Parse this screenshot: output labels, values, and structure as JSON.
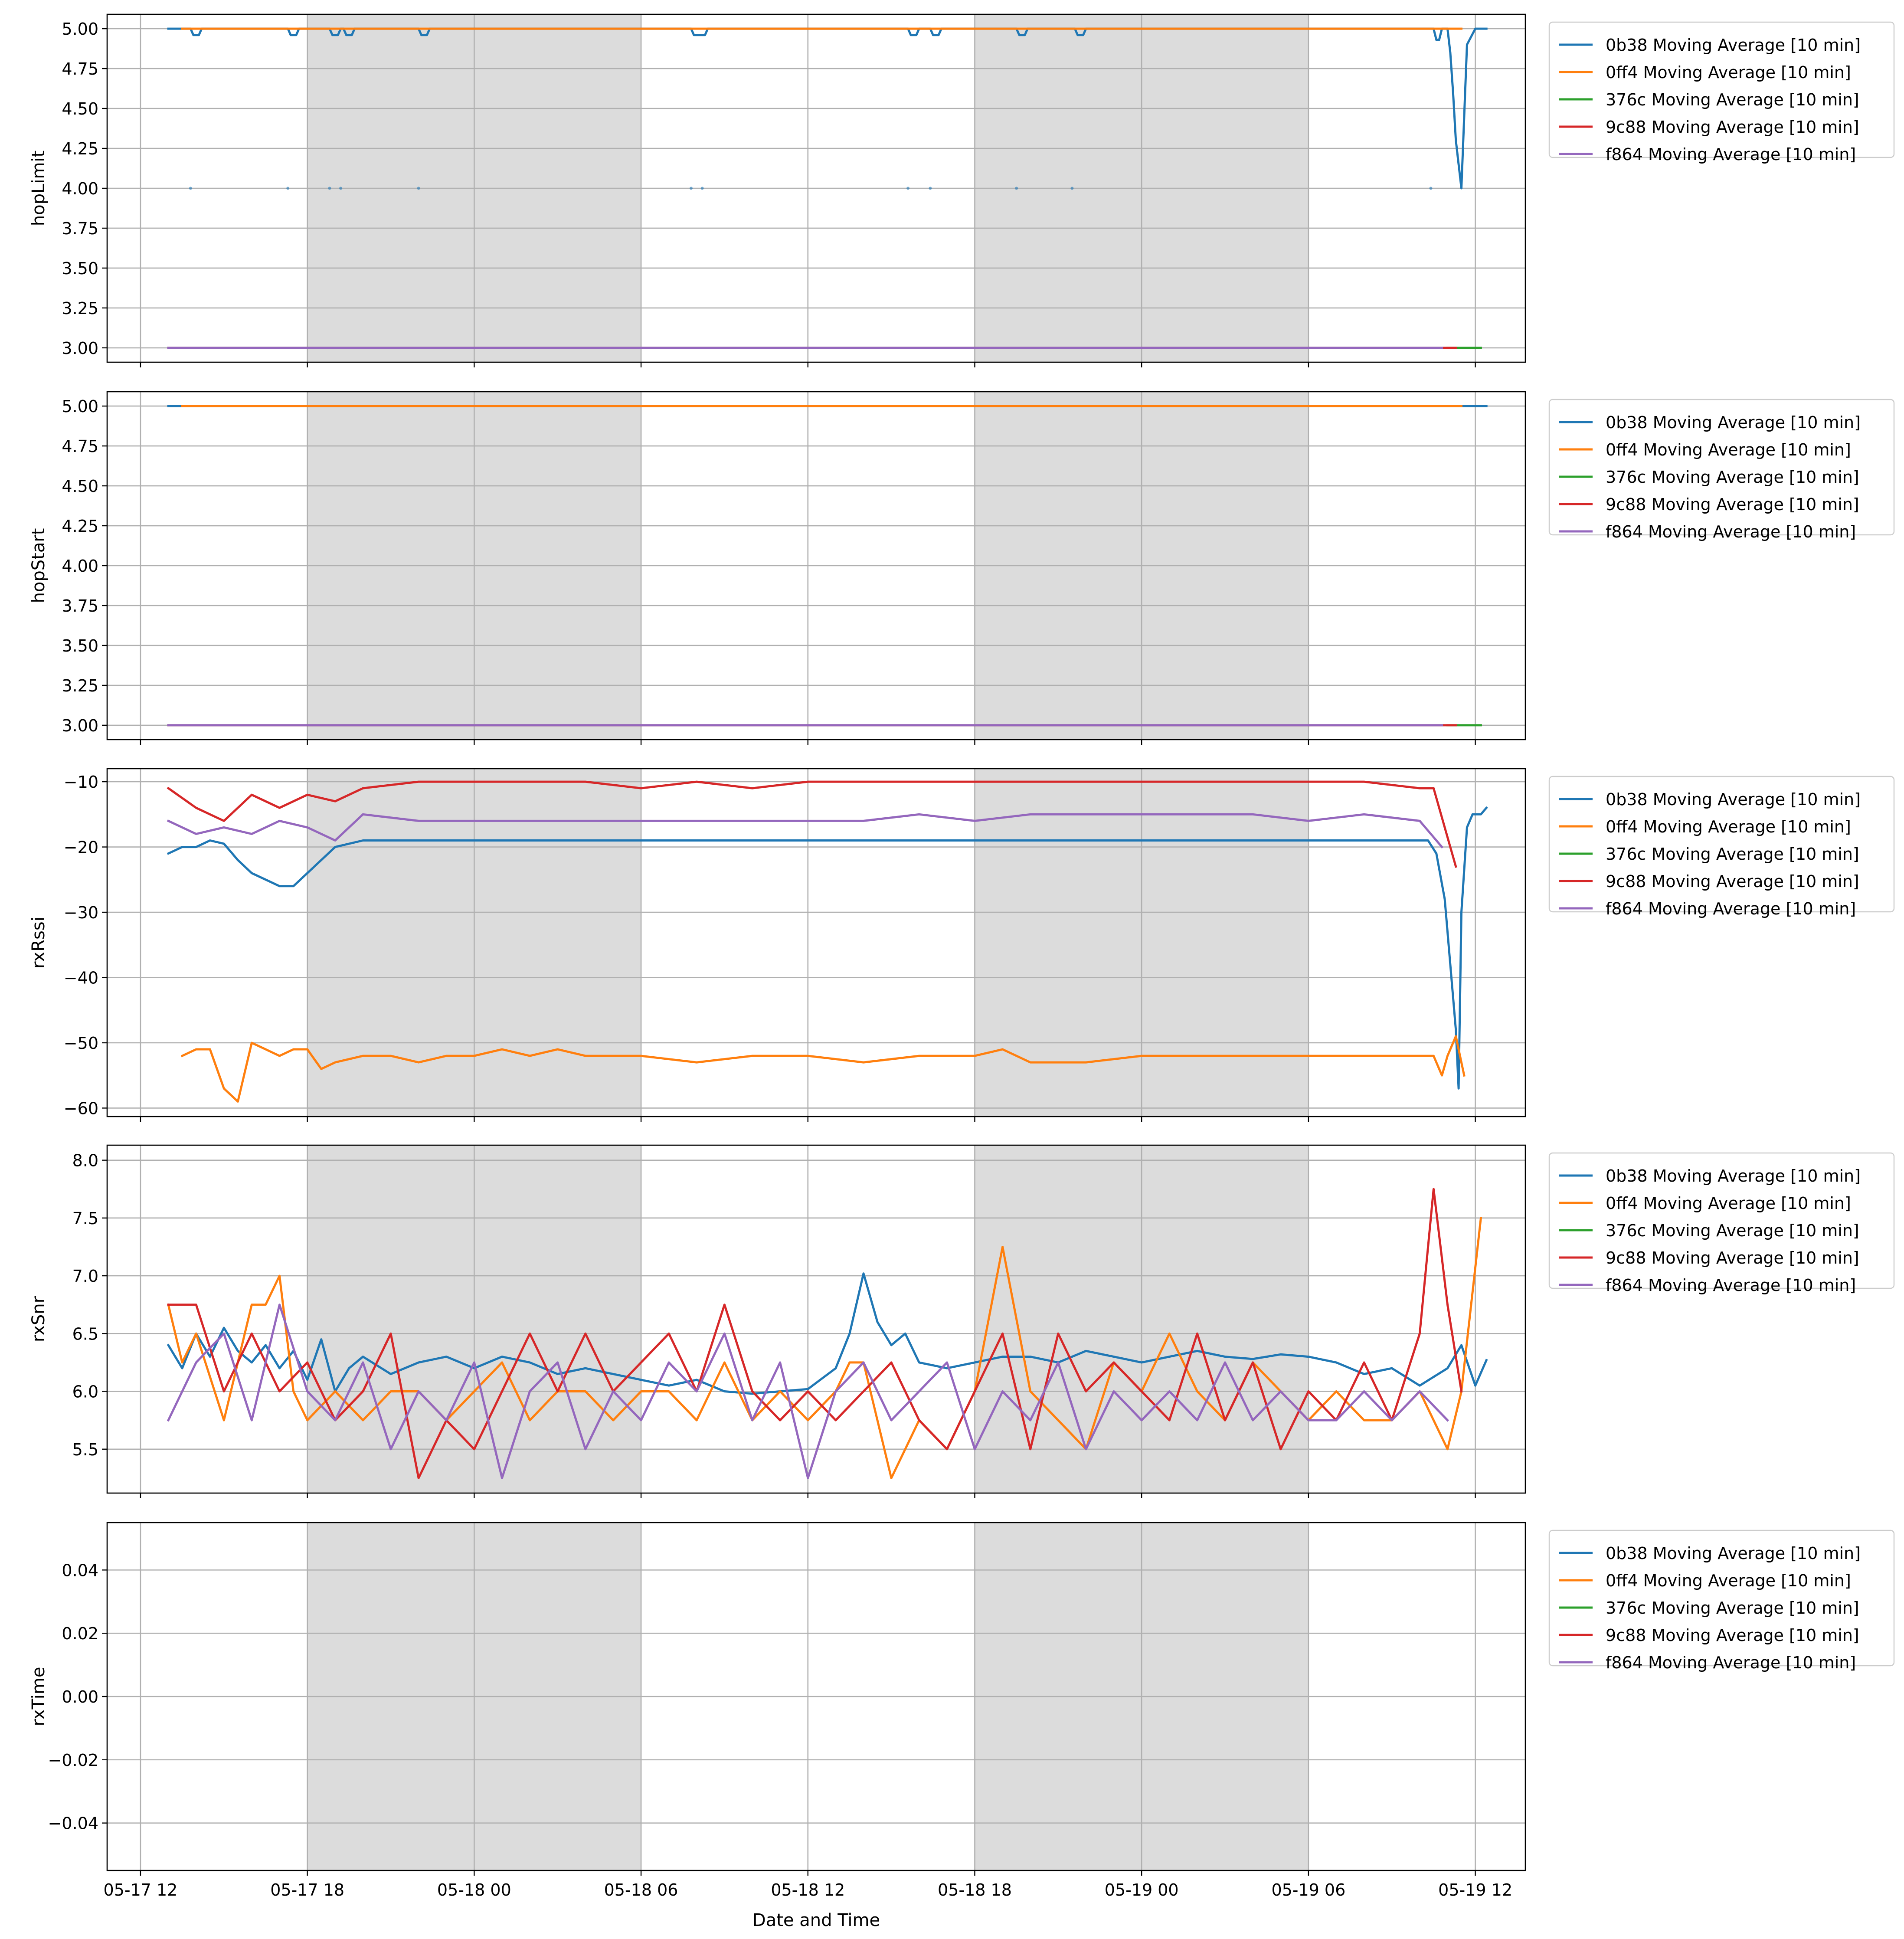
{
  "figure": {
    "xlabel": "Date and Time",
    "x_ticks": [
      "05-17 12",
      "05-17 18",
      "05-18 00",
      "05-18 06",
      "05-18 12",
      "05-18 18",
      "05-19 00",
      "05-19 06",
      "05-19 12"
    ],
    "x_unit": "hours since 05-17 12:00",
    "x_range": [
      -1.2,
      49.8
    ],
    "night_shading": [
      [
        6,
        18
      ],
      [
        30,
        42
      ]
    ],
    "colors": {
      "0b38": "#1f77b4",
      "0ff4": "#ff7f0e",
      "376c": "#2ca02c",
      "9c88": "#d62728",
      "f864": "#9467bd",
      "grid": "#b0b0b0",
      "night": "#dcdcdc"
    }
  },
  "legend_entries": [
    "0b38 Moving Average [10 min]",
    "0ff4 Moving Average [10 min]",
    "376c Moving Average [10 min]",
    "9c88 Moving Average [10 min]",
    "f864 Moving Average [10 min]"
  ],
  "chart_data": [
    {
      "type": "line",
      "ylabel": "hopLimit",
      "ylim": [
        2.91,
        5.09
      ],
      "yticks": [
        3.0,
        3.25,
        3.5,
        3.75,
        4.0,
        4.25,
        4.5,
        4.75,
        5.0
      ],
      "ytick_labels": [
        "3.00",
        "3.25",
        "3.50",
        "3.75",
        "4.00",
        "4.25",
        "4.50",
        "4.75",
        "5.00"
      ],
      "series": [
        {
          "name": "0b38",
          "x": [
            1.0,
            1.8,
            1.9,
            2.1,
            2.2,
            5.3,
            5.4,
            5.6,
            5.7,
            6.8,
            6.9,
            7.1,
            7.2,
            7.3,
            7.4,
            7.6,
            7.7,
            10.0,
            10.1,
            10.3,
            10.4,
            19.8,
            19.9,
            20.3,
            20.4,
            27.6,
            27.7,
            27.9,
            28.0,
            28.4,
            28.5,
            28.7,
            28.8,
            31.5,
            31.6,
            31.8,
            31.9,
            33.6,
            33.7,
            33.9,
            34.0,
            46.5,
            46.6,
            46.7,
            46.8,
            47.0,
            47.1,
            47.2,
            47.3,
            47.5,
            47.7,
            48.0,
            48.4
          ],
          "y": [
            5.0,
            5.0,
            4.96,
            4.96,
            5.0,
            5.0,
            4.96,
            4.96,
            5.0,
            5.0,
            4.96,
            4.96,
            5.0,
            5.0,
            4.96,
            4.96,
            5.0,
            5.0,
            4.96,
            4.96,
            5.0,
            5.0,
            4.96,
            4.96,
            5.0,
            5.0,
            4.96,
            4.96,
            5.0,
            5.0,
            4.96,
            4.96,
            5.0,
            5.0,
            4.96,
            4.96,
            5.0,
            5.0,
            4.96,
            4.96,
            5.0,
            5.0,
            4.93,
            4.93,
            5.0,
            5.0,
            4.85,
            4.6,
            4.3,
            4.0,
            4.9,
            5.0,
            5.0
          ]
        },
        {
          "name": "0ff4",
          "x": [
            1.5,
            47.5
          ],
          "y": [
            5.0,
            5.0
          ]
        },
        {
          "name": "376c",
          "x": [
            47.0,
            48.2
          ],
          "y": [
            3.0,
            3.0
          ]
        },
        {
          "name": "9c88",
          "x": [
            1.0,
            47.3
          ],
          "y": [
            3.0,
            3.0
          ]
        },
        {
          "name": "f864",
          "x": [
            1.0,
            46.8
          ],
          "y": [
            3.0,
            3.0
          ]
        }
      ],
      "points_0b38": {
        "x": [
          1.8,
          5.3,
          6.8,
          7.2,
          10.0,
          19.8,
          20.2,
          27.6,
          28.4,
          31.5,
          33.5,
          46.4
        ],
        "y": [
          4.0,
          4.0,
          4.0,
          4.0,
          4.0,
          4.0,
          4.0,
          4.0,
          4.0,
          4.0,
          4.0,
          4.0
        ]
      }
    },
    {
      "type": "line",
      "ylabel": "hopStart",
      "ylim": [
        2.91,
        5.09
      ],
      "yticks": [
        3.0,
        3.25,
        3.5,
        3.75,
        4.0,
        4.25,
        4.5,
        4.75,
        5.0
      ],
      "ytick_labels": [
        "3.00",
        "3.25",
        "3.50",
        "3.75",
        "4.00",
        "4.25",
        "4.50",
        "4.75",
        "5.00"
      ],
      "series": [
        {
          "name": "0b38",
          "x": [
            1.0,
            1.6,
            47.6,
            48.4
          ],
          "y": [
            5.0,
            5.0,
            5.0,
            5.0
          ]
        },
        {
          "name": "0ff4",
          "x": [
            1.5,
            47.5
          ],
          "y": [
            5.0,
            5.0
          ]
        },
        {
          "name": "376c",
          "x": [
            47.0,
            48.2
          ],
          "y": [
            3.0,
            3.0
          ]
        },
        {
          "name": "9c88",
          "x": [
            1.0,
            47.3
          ],
          "y": [
            3.0,
            3.0
          ]
        },
        {
          "name": "f864",
          "x": [
            1.0,
            46.8
          ],
          "y": [
            3.0,
            3.0
          ]
        }
      ]
    },
    {
      "type": "line",
      "ylabel": "rxRssi",
      "ylim": [
        -61.3,
        -8.0
      ],
      "yticks": [
        -60,
        -50,
        -40,
        -30,
        -20,
        -10
      ],
      "ytick_labels": [
        "−60",
        "−50",
        "−40",
        "−30",
        "−20",
        "−10"
      ],
      "series": [
        {
          "name": "0b38",
          "x": [
            1.0,
            1.5,
            2.0,
            2.5,
            3.0,
            3.5,
            4.0,
            4.5,
            5.0,
            5.5,
            6.0,
            6.5,
            7.0,
            8.0,
            9.0,
            10.0,
            11.0,
            12.0,
            15.0,
            20.0,
            25.0,
            30.0,
            35.0,
            40.0,
            45.0,
            46.3,
            46.6,
            46.9,
            47.1,
            47.3,
            47.4,
            47.5,
            47.7,
            47.9,
            48.2,
            48.4
          ],
          "y": [
            -21,
            -20,
            -20,
            -19,
            -19.5,
            -22,
            -24,
            -25,
            -26,
            -26,
            -24,
            -22,
            -20,
            -19,
            -19,
            -19,
            -19,
            -19,
            -19,
            -19,
            -19,
            -19,
            -19,
            -19,
            -19,
            -19,
            -21,
            -28,
            -38,
            -48,
            -57,
            -30,
            -17,
            -15,
            -15,
            -14
          ]
        },
        {
          "name": "0ff4",
          "x": [
            1.5,
            2.0,
            2.5,
            3.0,
            3.5,
            4.0,
            4.5,
            5.0,
            5.5,
            6.0,
            6.5,
            7.0,
            8.0,
            9.0,
            10.0,
            11.0,
            12.0,
            13.0,
            14.0,
            15.0,
            16.0,
            16.5,
            17.0,
            18.0,
            20.0,
            22.0,
            24.0,
            26.0,
            28.0,
            30.0,
            31.0,
            32.0,
            34.0,
            36.0,
            38.0,
            40.0,
            42.0,
            44.0,
            45.0,
            46.0,
            46.5,
            46.8,
            47.0,
            47.3,
            47.6
          ],
          "y": [
            -52,
            -51,
            -51,
            -57,
            -59,
            -50,
            -51,
            -52,
            -51,
            -51,
            -54,
            -53,
            -52,
            -52,
            -53,
            -52,
            -52,
            -51,
            -52,
            -51,
            -52,
            -52,
            -52,
            -52,
            -53,
            -52,
            -52,
            -53,
            -52,
            -52,
            -51,
            -53,
            -53,
            -52,
            -52,
            -52,
            -52,
            -52,
            -52,
            -52,
            -52,
            -55,
            -52,
            -49,
            -55
          ]
        },
        {
          "name": "9c88",
          "x": [
            1.0,
            2.0,
            3.0,
            4.0,
            5.0,
            6.0,
            7.0,
            8.0,
            10.0,
            12.0,
            14.0,
            16.0,
            18.0,
            20.0,
            22.0,
            24.0,
            26.0,
            28.0,
            30.0,
            32.0,
            34.0,
            36.0,
            38.0,
            40.0,
            42.0,
            44.0,
            46.0,
            46.5,
            47.3
          ],
          "y": [
            -11,
            -14,
            -16,
            -12,
            -14,
            -12,
            -13,
            -11,
            -10,
            -10,
            -10,
            -10,
            -11,
            -10,
            -11,
            -10,
            -10,
            -10,
            -10,
            -10,
            -10,
            -10,
            -10,
            -10,
            -10,
            -10,
            -11,
            -11,
            -23
          ]
        },
        {
          "name": "f864",
          "x": [
            1.0,
            2.0,
            3.0,
            4.0,
            5.0,
            6.0,
            7.0,
            8.0,
            10.0,
            12.0,
            14.0,
            16.0,
            18.0,
            20.0,
            22.0,
            24.0,
            26.0,
            28.0,
            30.0,
            32.0,
            34.0,
            36.0,
            38.0,
            40.0,
            42.0,
            44.0,
            46.0,
            46.8
          ],
          "y": [
            -16,
            -18,
            -17,
            -18,
            -16,
            -17,
            -19,
            -15,
            -16,
            -16,
            -16,
            -16,
            -16,
            -16,
            -16,
            -16,
            -16,
            -15,
            -16,
            -15,
            -15,
            -15,
            -15,
            -15,
            -16,
            -15,
            -16,
            -20
          ]
        }
      ]
    },
    {
      "type": "line",
      "ylabel": "rxSnr",
      "ylim": [
        5.12,
        8.13
      ],
      "yticks": [
        5.5,
        6.0,
        6.5,
        7.0,
        7.5,
        8.0
      ],
      "ytick_labels": [
        "5.5",
        "6.0",
        "6.5",
        "7.0",
        "7.5",
        "8.0"
      ],
      "series": [
        {
          "name": "0b38",
          "x": [
            1.0,
            1.5,
            2.0,
            2.5,
            3.0,
            3.5,
            4.0,
            4.5,
            5.0,
            5.5,
            6.0,
            6.5,
            7.0,
            7.5,
            8.0,
            9.0,
            10.0,
            11.0,
            12.0,
            13.0,
            14.0,
            15.0,
            16.0,
            17.0,
            18.0,
            19.0,
            20.0,
            21.0,
            22.0,
            23.0,
            24.0,
            25.0,
            25.5,
            26.0,
            26.5,
            27.0,
            27.5,
            28.0,
            29.0,
            30.0,
            31.0,
            32.0,
            33.0,
            34.0,
            35.0,
            36.0,
            37.0,
            38.0,
            39.0,
            40.0,
            41.0,
            42.0,
            43.0,
            44.0,
            45.0,
            46.0,
            47.0,
            47.5,
            48.0,
            48.4
          ],
          "y": [
            6.4,
            6.2,
            6.5,
            6.3,
            6.55,
            6.35,
            6.25,
            6.4,
            6.2,
            6.35,
            6.1,
            6.45,
            6.0,
            6.2,
            6.3,
            6.15,
            6.25,
            6.3,
            6.2,
            6.3,
            6.25,
            6.15,
            6.2,
            6.15,
            6.1,
            6.05,
            6.1,
            6.0,
            5.98,
            6.0,
            6.02,
            6.2,
            6.5,
            7.02,
            6.6,
            6.4,
            6.5,
            6.25,
            6.2,
            6.25,
            6.3,
            6.3,
            6.25,
            6.35,
            6.3,
            6.25,
            6.3,
            6.35,
            6.3,
            6.28,
            6.32,
            6.3,
            6.25,
            6.15,
            6.2,
            6.05,
            6.2,
            6.4,
            6.05,
            6.27
          ]
        },
        {
          "name": "0ff4",
          "x": [
            1.0,
            1.5,
            2.0,
            3.0,
            4.0,
            4.5,
            5.0,
            5.5,
            6.0,
            7.0,
            8.0,
            9.0,
            10.0,
            11.0,
            12.0,
            13.0,
            14.0,
            15.0,
            16.0,
            17.0,
            18.0,
            19.0,
            20.0,
            21.0,
            22.0,
            23.0,
            24.0,
            25.0,
            25.5,
            26.0,
            27.0,
            28.0,
            29.0,
            30.0,
            31.0,
            32.0,
            33.0,
            34.0,
            35.0,
            36.0,
            37.0,
            38.0,
            39.0,
            40.0,
            41.0,
            42.0,
            43.0,
            44.0,
            45.0,
            46.0,
            47.0,
            47.5,
            48.2
          ],
          "y": [
            6.75,
            6.25,
            6.5,
            5.75,
            6.75,
            6.75,
            7.0,
            6.0,
            5.75,
            6.0,
            5.75,
            6.0,
            6.0,
            5.75,
            6.0,
            6.25,
            5.75,
            6.0,
            6.0,
            5.75,
            6.0,
            6.0,
            5.75,
            6.25,
            5.75,
            6.0,
            5.75,
            6.0,
            6.25,
            6.25,
            5.25,
            5.75,
            5.5,
            6.0,
            7.25,
            6.0,
            5.75,
            5.5,
            6.25,
            6.0,
            6.5,
            6.0,
            5.75,
            6.25,
            6.0,
            5.75,
            6.0,
            5.75,
            5.75,
            6.0,
            5.5,
            6.0,
            7.5
          ]
        },
        {
          "name": "9c88",
          "x": [
            1.0,
            2.0,
            3.0,
            4.0,
            5.0,
            6.0,
            7.0,
            8.0,
            9.0,
            10.0,
            11.0,
            12.0,
            13.0,
            14.0,
            15.0,
            16.0,
            17.0,
            18.0,
            19.0,
            20.0,
            21.0,
            22.0,
            23.0,
            24.0,
            25.0,
            26.0,
            27.0,
            28.0,
            29.0,
            30.0,
            31.0,
            32.0,
            33.0,
            34.0,
            35.0,
            36.0,
            37.0,
            38.0,
            39.0,
            40.0,
            41.0,
            42.0,
            43.0,
            44.0,
            45.0,
            46.0,
            46.5,
            47.0,
            47.5
          ],
          "y": [
            6.75,
            6.75,
            6.0,
            6.5,
            6.0,
            6.25,
            5.75,
            6.0,
            6.5,
            5.25,
            5.75,
            5.5,
            6.0,
            6.5,
            6.0,
            6.5,
            6.0,
            6.25,
            6.5,
            6.0,
            6.75,
            6.0,
            5.75,
            6.0,
            5.75,
            6.0,
            6.25,
            5.75,
            5.5,
            6.0,
            6.5,
            5.5,
            6.5,
            6.0,
            6.25,
            6.0,
            5.75,
            6.5,
            5.75,
            6.25,
            5.5,
            6.0,
            5.75,
            6.25,
            5.75,
            6.5,
            7.75,
            6.75,
            6.0
          ]
        },
        {
          "name": "f864",
          "x": [
            1.0,
            2.0,
            3.0,
            4.0,
            5.0,
            6.0,
            7.0,
            8.0,
            9.0,
            10.0,
            11.0,
            12.0,
            13.0,
            14.0,
            15.0,
            16.0,
            17.0,
            18.0,
            19.0,
            20.0,
            21.0,
            22.0,
            23.0,
            24.0,
            25.0,
            26.0,
            27.0,
            28.0,
            29.0,
            30.0,
            31.0,
            32.0,
            33.0,
            34.0,
            35.0,
            36.0,
            37.0,
            38.0,
            39.0,
            40.0,
            41.0,
            42.0,
            43.0,
            44.0,
            45.0,
            46.0,
            47.0
          ],
          "y": [
            5.75,
            6.25,
            6.5,
            5.75,
            6.75,
            6.0,
            5.75,
            6.25,
            5.5,
            6.0,
            5.75,
            6.25,
            5.25,
            6.0,
            6.25,
            5.5,
            6.0,
            5.75,
            6.25,
            6.0,
            6.5,
            5.75,
            6.25,
            5.25,
            6.0,
            6.25,
            5.75,
            6.0,
            6.25,
            5.5,
            6.0,
            5.75,
            6.25,
            5.5,
            6.0,
            5.75,
            6.0,
            5.75,
            6.25,
            5.75,
            6.0,
            5.75,
            5.75,
            6.0,
            5.75,
            6.0,
            5.75
          ]
        }
      ]
    },
    {
      "type": "line",
      "ylabel": "rxTime",
      "ylim": [
        -0.055,
        0.055
      ],
      "yticks": [
        -0.04,
        -0.02,
        0.0,
        0.02,
        0.04
      ],
      "ytick_labels": [
        "−0.04",
        "−0.02",
        "0.00",
        "0.02",
        "0.04"
      ],
      "series": []
    }
  ]
}
